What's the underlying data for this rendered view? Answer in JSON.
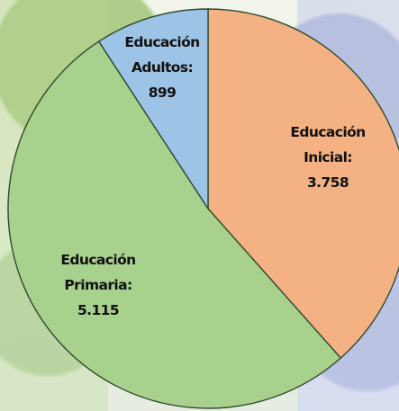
{
  "chart_data": {
    "type": "pie",
    "title": "",
    "slices": [
      {
        "label_lines": [
          "Educación",
          "Inicial:"
        ],
        "value_text": "3.758",
        "value": 3758,
        "color": "#f4b183"
      },
      {
        "label_lines": [
          "Educación",
          "Primaria:"
        ],
        "value_text": "5.115",
        "value": 5115,
        "color": "#a9d18e"
      },
      {
        "label_lines": [
          "Educación",
          "Adultos:"
        ],
        "value_text": "899",
        "value": 899,
        "color": "#9dc3e6"
      }
    ]
  }
}
